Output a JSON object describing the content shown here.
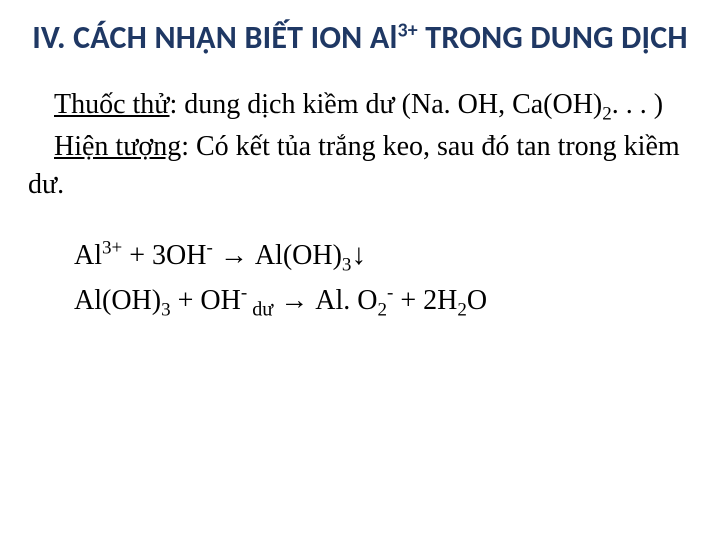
{
  "colors": {
    "title": "#1f3864",
    "body": "#000000",
    "background": "#ffffff"
  },
  "typography": {
    "title_family": "Segoe UI, Calibri, Arial, sans-serif",
    "title_weight": 700,
    "title_size_pt": 24,
    "body_family": "Times New Roman, Times, serif",
    "body_size_pt": 21
  },
  "title": {
    "pre": "IV. CÁCH NHẬN BIẾT ION Al",
    "sup": "3+",
    "post": " TRONG DUNG DỊCH"
  },
  "reagent": {
    "label": "Thuốc thử",
    "text_a": ": dung dịch kiềm dư (Na. OH, Ca(OH)",
    "sub": "2",
    "text_b": ". . . )"
  },
  "phenomenon": {
    "label": "Hiện tượng",
    "text": ": Có kết tủa trắng keo, sau đó tan trong kiềm dư."
  },
  "equations": {
    "eq1": {
      "lhs_a": "Al",
      "lhs_a_sup": "3+",
      "lhs_b": "  + 3OH",
      "lhs_b_sup": "-",
      "arrow": "  →   ",
      "rhs_a": "Al(OH)",
      "rhs_a_sub": "3",
      "down": "↓"
    },
    "eq2": {
      "lhs_a": "Al(OH)",
      "lhs_a_sub": "3",
      "lhs_b": "  + OH",
      "lhs_b_sup": "-",
      "du_sub": " dư",
      "arrow": "  →    ",
      "rhs_a": "Al. O",
      "rhs_a_sub": "2",
      "rhs_a_sup": "-",
      "rhs_b": "  + 2H",
      "rhs_b_sub": "2",
      "rhs_c": "O"
    }
  }
}
